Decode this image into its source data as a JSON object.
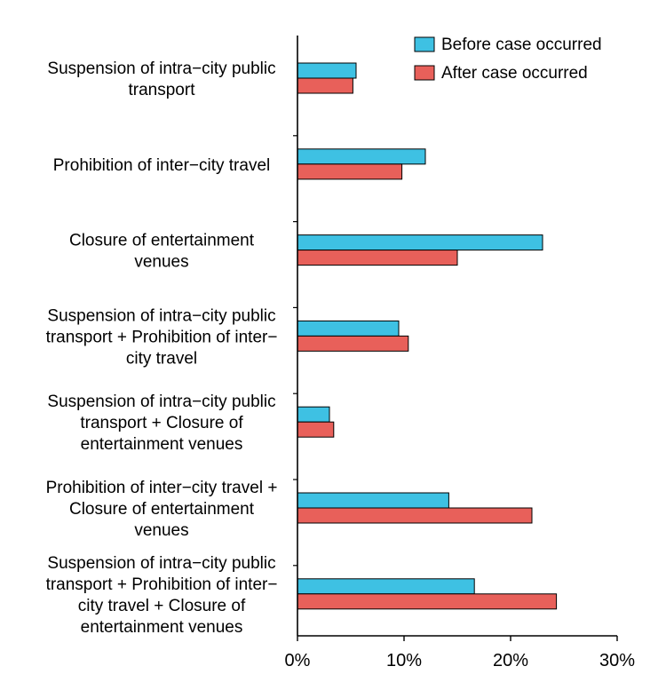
{
  "chart_data": {
    "type": "bar",
    "orientation": "horizontal",
    "categories": [
      [
        "Suspension of intra−city public",
        "transport"
      ],
      [
        "Prohibition of inter−city travel"
      ],
      [
        "Closure of entertainment",
        "venues"
      ],
      [
        "Suspension of intra−city public",
        "transport + Prohibition of inter−",
        "city travel"
      ],
      [
        "Suspension of intra−city public",
        "transport + Closure of",
        "entertainment venues"
      ],
      [
        "Prohibition of inter−city travel +",
        "Closure of entertainment",
        "venues"
      ],
      [
        "Suspension of intra−city public",
        "transport + Prohibition of inter−",
        "city travel + Closure of",
        "entertainment venues"
      ]
    ],
    "series": [
      {
        "name": "Before case occurred",
        "color": "#3ec1e3",
        "values": [
          5.5,
          12.0,
          23.0,
          9.5,
          3.0,
          14.2,
          16.6
        ]
      },
      {
        "name": "After case occurred",
        "color": "#e8605a",
        "values": [
          5.2,
          9.8,
          15.0,
          10.4,
          3.4,
          22.0,
          24.3
        ]
      }
    ],
    "xlim": [
      0,
      30
    ],
    "xticks": [
      0,
      10,
      20,
      30
    ],
    "xtick_labels": [
      "0%",
      "10%",
      "20%",
      "30%"
    ],
    "title": "",
    "xlabel": "",
    "ylabel": "",
    "grid": false,
    "legend_position": "top-right"
  }
}
